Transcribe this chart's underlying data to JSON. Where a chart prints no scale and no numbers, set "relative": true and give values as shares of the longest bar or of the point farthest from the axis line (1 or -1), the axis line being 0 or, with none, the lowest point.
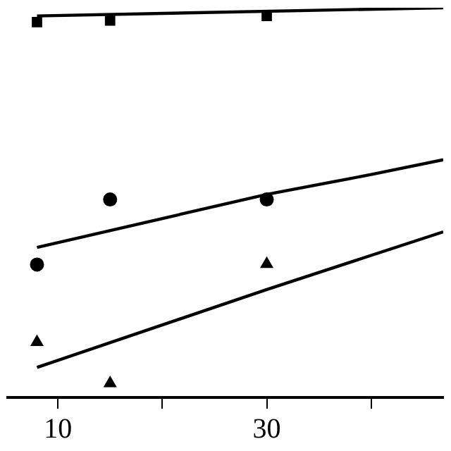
{
  "chart_data": {
    "type": "scatter",
    "relative": true,
    "xlim": [
      5.2,
      46.9
    ],
    "xticks": [
      10,
      {
        "value": 20,
        "label": null
      },
      30,
      {
        "value": 40,
        "label": null
      }
    ],
    "tick_labels": "x",
    "grid": false,
    "legend": false,
    "series": [
      {
        "marker": "square",
        "color": "#000000",
        "x": [
          8,
          15,
          30
        ],
        "values": [
          0.963,
          0.967,
          0.979
        ]
      },
      {
        "marker": "circle",
        "color": "#000000",
        "x": [
          8,
          15,
          30
        ],
        "values": [
          0.341,
          0.508,
          0.508
        ]
      },
      {
        "marker": "triangle",
        "color": "#000000",
        "x": [
          8,
          15,
          30
        ],
        "values": [
          0.142,
          0.036,
          0.342
        ]
      },
      {
        "type": "line",
        "marker": "none",
        "line_style": "solid",
        "color": "#000000",
        "x": [
          8,
          46.9
        ],
        "values": [
          0.979,
          1
        ]
      },
      {
        "type": "line",
        "marker": "none",
        "line_style": "solid",
        "color": "#000000",
        "x": [
          8,
          30,
          40,
          46.9
        ],
        "values": [
          0.385,
          0.521,
          0.572,
          0.61
        ]
      },
      {
        "type": "line",
        "marker": "none",
        "line_style": "solid",
        "color": "#000000",
        "x": [
          8,
          30,
          46.9
        ],
        "values": [
          0.077,
          0.277,
          0.425
        ]
      }
    ]
  }
}
